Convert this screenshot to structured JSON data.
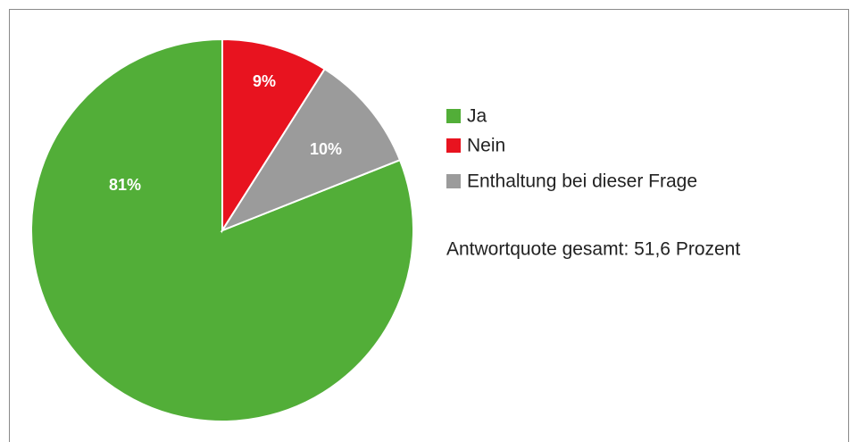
{
  "chart_data": {
    "type": "pie",
    "categories": [
      "Ja",
      "Nein",
      "Enthaltung bei dieser Frage"
    ],
    "values": [
      81,
      9,
      10
    ],
    "value_labels": [
      "81%",
      "9%",
      "10%"
    ],
    "colors": [
      "#52ae38",
      "#e8131f",
      "#9b9b9b"
    ],
    "annotation": "Antwortquote gesamt: 51,6 Prozent"
  }
}
